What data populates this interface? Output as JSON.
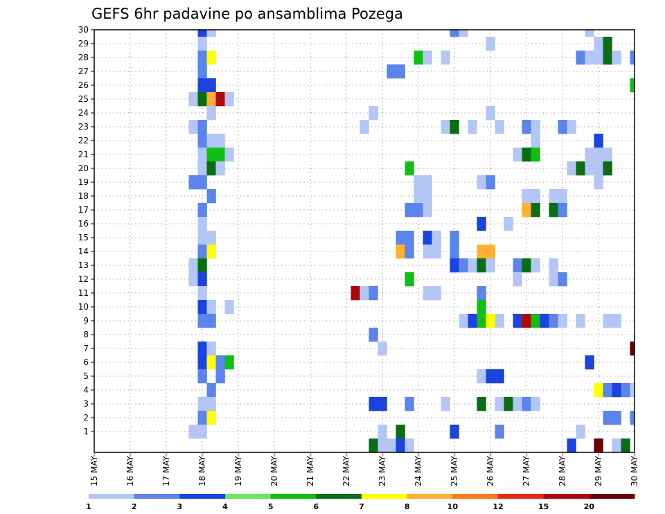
{
  "chart_data": {
    "type": "heatmap",
    "title": "GEFS 6hr padavine po ansamblima Pozega",
    "xlabel": "",
    "ylabel": "",
    "x_tick_labels": [
      "15 MAY",
      "16 MAY",
      "17 MAY",
      "18 MAY",
      "19 MAY",
      "20 MAY",
      "21 MAY",
      "22 MAY",
      "23 MAY",
      "24 MAY",
      "25 MAY",
      "26 MAY",
      "27 MAY",
      "28 MAY",
      "29 MAY",
      "30 MAY"
    ],
    "y_tick_labels": [
      "1",
      "2",
      "3",
      "4",
      "5",
      "6",
      "7",
      "8",
      "9",
      "10",
      "11",
      "12",
      "13",
      "14",
      "15",
      "16",
      "17",
      "18",
      "19",
      "20",
      "21",
      "22",
      "23",
      "24",
      "25",
      "26",
      "27",
      "28",
      "29",
      "30"
    ],
    "x_range_days": [
      15,
      30
    ],
    "time_step_hours": 6,
    "members": 30,
    "grid": "dotted",
    "colorbar": {
      "levels": [
        "1",
        "2",
        "3",
        "4",
        "5",
        "6",
        "7",
        "8",
        "10",
        "12",
        "15",
        "20"
      ],
      "colors": [
        "#b4c6f5",
        "#5b84ec",
        "#1b43e0",
        "#6ae85c",
        "#10c010",
        "#0a6e14",
        "#ffff00",
        "#ffb030",
        "#ff7a18",
        "#e82a18",
        "#b00808",
        "#6a0000"
      ]
    },
    "cells": [
      [
        30,
        18.0,
        3
      ],
      [
        30,
        18.25,
        1
      ],
      [
        30,
        25.0,
        2
      ],
      [
        30,
        25.25,
        1
      ],
      [
        30,
        28.75,
        1
      ],
      [
        29,
        18.0,
        1
      ],
      [
        29,
        26.0,
        1
      ],
      [
        29,
        29.0,
        1
      ],
      [
        29,
        29.25,
        6
      ],
      [
        28,
        18.0,
        2
      ],
      [
        28,
        18.25,
        7
      ],
      [
        28,
        24.0,
        5
      ],
      [
        28,
        24.25,
        1
      ],
      [
        28,
        24.75,
        1
      ],
      [
        28,
        28.5,
        2
      ],
      [
        28,
        28.75,
        1
      ],
      [
        28,
        29.0,
        1
      ],
      [
        28,
        29.25,
        6
      ],
      [
        28,
        29.5,
        1
      ],
      [
        28,
        30.0,
        2
      ],
      [
        28,
        30.25,
        2
      ],
      [
        27,
        18.0,
        2
      ],
      [
        27,
        23.25,
        2
      ],
      [
        27,
        23.5,
        2
      ],
      [
        27,
        30.25,
        2
      ],
      [
        26,
        18.0,
        3
      ],
      [
        26,
        18.25,
        3
      ],
      [
        26,
        30.0,
        5
      ],
      [
        26,
        30.25,
        12
      ],
      [
        25,
        17.75,
        1
      ],
      [
        25,
        18.0,
        6
      ],
      [
        25,
        18.25,
        8
      ],
      [
        25,
        18.5,
        11
      ],
      [
        25,
        18.75,
        1
      ],
      [
        24,
        18.25,
        1
      ],
      [
        24,
        22.75,
        1
      ],
      [
        24,
        26.0,
        1
      ],
      [
        23,
        17.75,
        1
      ],
      [
        23,
        18.0,
        2
      ],
      [
        23,
        22.5,
        1
      ],
      [
        23,
        24.75,
        1
      ],
      [
        23,
        25.0,
        6
      ],
      [
        23,
        25.5,
        1
      ],
      [
        23,
        26.25,
        1
      ],
      [
        23,
        27.0,
        2
      ],
      [
        23,
        27.25,
        1
      ],
      [
        23,
        28.0,
        2
      ],
      [
        23,
        28.25,
        1
      ],
      [
        22,
        18.0,
        2
      ],
      [
        22,
        18.25,
        1
      ],
      [
        22,
        18.5,
        1
      ],
      [
        22,
        27.25,
        1
      ],
      [
        22,
        29.0,
        3
      ],
      [
        21,
        18.0,
        1
      ],
      [
        21,
        18.25,
        5
      ],
      [
        21,
        18.5,
        5
      ],
      [
        21,
        18.75,
        1
      ],
      [
        21,
        26.75,
        1
      ],
      [
        21,
        27.0,
        6
      ],
      [
        21,
        27.25,
        5
      ],
      [
        21,
        28.75,
        1
      ],
      [
        21,
        29.0,
        1
      ],
      [
        21,
        29.25,
        1
      ],
      [
        20,
        18.0,
        1
      ],
      [
        20,
        18.25,
        6
      ],
      [
        20,
        18.5,
        1
      ],
      [
        20,
        23.75,
        5
      ],
      [
        20,
        28.25,
        1
      ],
      [
        20,
        28.5,
        6
      ],
      [
        20,
        28.75,
        1
      ],
      [
        20,
        29.0,
        1
      ],
      [
        20,
        29.25,
        6
      ],
      [
        20,
        30.25,
        1
      ],
      [
        19,
        17.75,
        2
      ],
      [
        19,
        18.0,
        2
      ],
      [
        19,
        24.0,
        1
      ],
      [
        19,
        24.25,
        1
      ],
      [
        19,
        25.75,
        1
      ],
      [
        19,
        26.0,
        2
      ],
      [
        19,
        29.0,
        1
      ],
      [
        18,
        18.25,
        2
      ],
      [
        18,
        24.0,
        1
      ],
      [
        18,
        24.25,
        1
      ],
      [
        18,
        27.0,
        1
      ],
      [
        18,
        27.25,
        1
      ],
      [
        18,
        27.75,
        1
      ],
      [
        18,
        28.0,
        1
      ],
      [
        17,
        18.0,
        2
      ],
      [
        17,
        23.75,
        2
      ],
      [
        17,
        24.0,
        2
      ],
      [
        17,
        24.25,
        1
      ],
      [
        17,
        27.0,
        8
      ],
      [
        17,
        27.25,
        6
      ],
      [
        17,
        27.75,
        6
      ],
      [
        17,
        28.0,
        2
      ],
      [
        16,
        18.0,
        1
      ],
      [
        16,
        25.75,
        3
      ],
      [
        16,
        26.5,
        1
      ],
      [
        15,
        18.0,
        1
      ],
      [
        15,
        18.25,
        1
      ],
      [
        15,
        23.5,
        2
      ],
      [
        15,
        23.75,
        2
      ],
      [
        15,
        24.25,
        3
      ],
      [
        15,
        24.5,
        1
      ],
      [
        15,
        25.0,
        2
      ],
      [
        14,
        18.0,
        2
      ],
      [
        14,
        18.25,
        7
      ],
      [
        14,
        23.5,
        8
      ],
      [
        14,
        23.75,
        2
      ],
      [
        14,
        24.25,
        1
      ],
      [
        14,
        24.5,
        1
      ],
      [
        14,
        25.0,
        2
      ],
      [
        14,
        25.75,
        8
      ],
      [
        14,
        26.0,
        8
      ],
      [
        13,
        17.75,
        1
      ],
      [
        13,
        18.0,
        6
      ],
      [
        13,
        25.0,
        3
      ],
      [
        13,
        25.25,
        2
      ],
      [
        13,
        25.5,
        1
      ],
      [
        13,
        25.75,
        6
      ],
      [
        13,
        26.0,
        1
      ],
      [
        13,
        26.75,
        2
      ],
      [
        13,
        27.0,
        6
      ],
      [
        13,
        27.25,
        1
      ],
      [
        13,
        27.75,
        1
      ],
      [
        12,
        17.75,
        1
      ],
      [
        12,
        18.0,
        3
      ],
      [
        12,
        23.75,
        5
      ],
      [
        12,
        26.75,
        1
      ],
      [
        12,
        27.75,
        1
      ],
      [
        12,
        28.0,
        2
      ],
      [
        11,
        18.0,
        1
      ],
      [
        11,
        22.25,
        11
      ],
      [
        11,
        22.5,
        1
      ],
      [
        11,
        22.75,
        2
      ],
      [
        11,
        24.25,
        1
      ],
      [
        11,
        24.5,
        1
      ],
      [
        11,
        25.75,
        2
      ],
      [
        11,
        30.25,
        2
      ],
      [
        10,
        18.0,
        3
      ],
      [
        10,
        18.25,
        1
      ],
      [
        10,
        18.75,
        1
      ],
      [
        10,
        25.75,
        5
      ],
      [
        9,
        18.0,
        2
      ],
      [
        9,
        18.25,
        2
      ],
      [
        9,
        25.25,
        1
      ],
      [
        9,
        25.5,
        3
      ],
      [
        9,
        25.75,
        5
      ],
      [
        9,
        26.0,
        7
      ],
      [
        9,
        26.25,
        1
      ],
      [
        9,
        26.75,
        3
      ],
      [
        9,
        27.0,
        11
      ],
      [
        9,
        27.25,
        5
      ],
      [
        9,
        27.5,
        3
      ],
      [
        9,
        27.75,
        2
      ],
      [
        9,
        28.0,
        1
      ],
      [
        9,
        28.5,
        1
      ],
      [
        9,
        29.25,
        1
      ],
      [
        9,
        29.5,
        1
      ],
      [
        8,
        22.75,
        2
      ],
      [
        7,
        18.0,
        3
      ],
      [
        7,
        18.25,
        1
      ],
      [
        7,
        23.0,
        1
      ],
      [
        7,
        30.0,
        12
      ],
      [
        6,
        18.0,
        3
      ],
      [
        6,
        18.25,
        7
      ],
      [
        6,
        18.5,
        2
      ],
      [
        6,
        18.75,
        5
      ],
      [
        6,
        28.75,
        3
      ],
      [
        5,
        18.0,
        2
      ],
      [
        5,
        18.5,
        2
      ],
      [
        5,
        25.75,
        1
      ],
      [
        5,
        26.0,
        3
      ],
      [
        5,
        26.25,
        3
      ],
      [
        4,
        18.25,
        2
      ],
      [
        4,
        29.0,
        7
      ],
      [
        4,
        29.25,
        2
      ],
      [
        4,
        29.5,
        3
      ],
      [
        4,
        29.75,
        2
      ],
      [
        4,
        30.0,
        1
      ],
      [
        4,
        30.25,
        2
      ],
      [
        3,
        18.0,
        1
      ],
      [
        3,
        18.25,
        1
      ],
      [
        3,
        22.75,
        3
      ],
      [
        3,
        23.0,
        3
      ],
      [
        3,
        23.75,
        2
      ],
      [
        3,
        24.75,
        1
      ],
      [
        3,
        25.75,
        6
      ],
      [
        3,
        26.25,
        1
      ],
      [
        3,
        26.5,
        6
      ],
      [
        3,
        26.75,
        1
      ],
      [
        3,
        27.0,
        2
      ],
      [
        3,
        27.25,
        1
      ],
      [
        3,
        30.25,
        2
      ],
      [
        2,
        18.0,
        2
      ],
      [
        2,
        18.25,
        7
      ],
      [
        2,
        29.25,
        2
      ],
      [
        2,
        29.5,
        2
      ],
      [
        2,
        30.0,
        2
      ],
      [
        1,
        17.75,
        1
      ],
      [
        1,
        18.0,
        1
      ],
      [
        1,
        23.0,
        1
      ],
      [
        1,
        23.5,
        6
      ],
      [
        1,
        25.0,
        3
      ],
      [
        1,
        26.25,
        2
      ],
      [
        1,
        28.5,
        1
      ],
      [
        0,
        22.75,
        6
      ],
      [
        0,
        23.0,
        1
      ],
      [
        0,
        23.25,
        1
      ],
      [
        0,
        23.5,
        3
      ],
      [
        0,
        23.75,
        1
      ],
      [
        0,
        28.25,
        3
      ],
      [
        0,
        29.0,
        12
      ],
      [
        0,
        29.5,
        1
      ],
      [
        0,
        29.75,
        6
      ]
    ]
  }
}
